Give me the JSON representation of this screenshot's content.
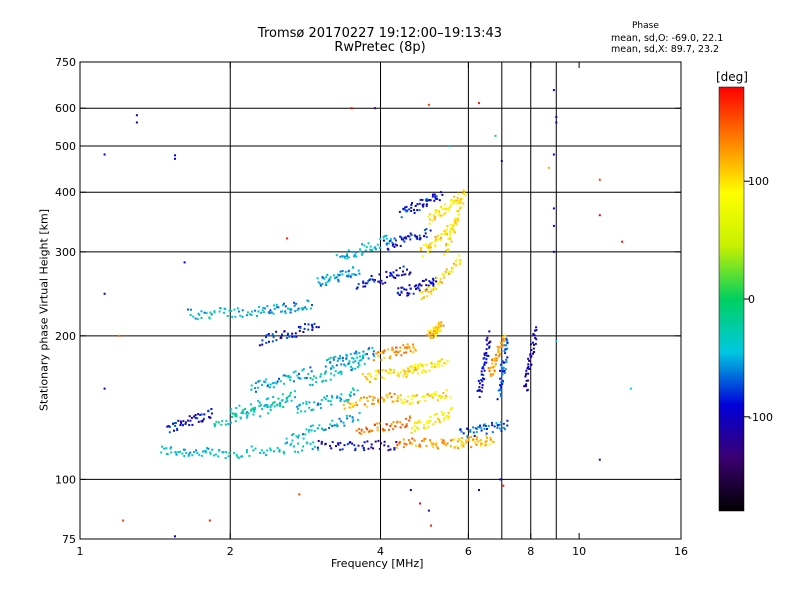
{
  "header": {
    "title": "Tromsø 20170227 19:12:00–19:13:43",
    "subtitle": "RwPretec (8p)",
    "phase_title": "Phase",
    "phase_o": "mean, sd,O: -69.0, 22.1",
    "phase_x": "mean, sd,X:  89.7, 23.2"
  },
  "colorbar": {
    "unit": "[deg]",
    "ticks": [
      {
        "value": 100,
        "label": "100"
      },
      {
        "value": 0,
        "label": "0"
      },
      {
        "value": -100,
        "label": "-100"
      }
    ],
    "range": [
      -180,
      180
    ],
    "colors": [
      "#000000",
      "#3a0070",
      "#0000d8",
      "#00c8e0",
      "#00d060",
      "#c8f000",
      "#ffff00",
      "#ff8000",
      "#ff0000"
    ]
  },
  "chart_data": {
    "type": "scatter",
    "xlabel": "Frequency [MHz]",
    "ylabel": "Stationary phase Virtual Height [km]",
    "x_scale": "log",
    "y_scale": "log",
    "xlim": [
      1,
      16
    ],
    "ylim": [
      75,
      750
    ],
    "x_ticks": [
      1,
      2,
      4,
      6,
      8,
      10,
      16
    ],
    "x_tick_labels": [
      "1",
      "2",
      "4",
      "6",
      "8",
      "10",
      "16"
    ],
    "y_ticks": [
      75,
      100,
      200,
      300,
      400,
      500,
      600,
      750
    ],
    "y_tick_labels": [
      "75",
      "100",
      "200",
      "300",
      "400",
      "500",
      "600",
      "750"
    ],
    "grid_x": [
      2,
      4,
      6,
      7,
      8,
      9
    ],
    "grid_y": [
      100,
      200,
      300,
      400,
      500,
      600
    ],
    "color": "phase [deg]",
    "traces": [
      {
        "f0": 1.45,
        "f1": 1.95,
        "h0": 115,
        "h1": 113,
        "phase": -40
      },
      {
        "f0": 1.95,
        "f1": 3.0,
        "h0": 113,
        "h1": 118,
        "phase": -35
      },
      {
        "f0": 3.0,
        "f1": 4.3,
        "h0": 118,
        "h1": 118,
        "phase": -100
      },
      {
        "f0": 4.3,
        "f1": 5.6,
        "h0": 119,
        "h1": 119,
        "phase": 130
      },
      {
        "f0": 5.6,
        "f1": 6.7,
        "h0": 119,
        "h1": 121,
        "phase": 110
      },
      {
        "f0": 1.5,
        "f1": 1.85,
        "h0": 128,
        "h1": 138,
        "phase": -90
      },
      {
        "f0": 1.85,
        "f1": 2.6,
        "h0": 130,
        "h1": 145,
        "phase": -30
      },
      {
        "f0": 2.6,
        "f1": 3.6,
        "h0": 122,
        "h1": 135,
        "phase": -45
      },
      {
        "f0": 3.6,
        "f1": 4.6,
        "h0": 125,
        "h1": 133,
        "phase": 140
      },
      {
        "f0": 4.6,
        "f1": 5.6,
        "h0": 128,
        "h1": 138,
        "phase": 90
      },
      {
        "f0": 5.8,
        "f1": 7.2,
        "h0": 125,
        "h1": 130,
        "phase": -70
      },
      {
        "f0": 2.0,
        "f1": 2.7,
        "h0": 138,
        "h1": 150,
        "phase": -30
      },
      {
        "f0": 2.7,
        "f1": 3.6,
        "h0": 140,
        "h1": 152,
        "phase": -40
      },
      {
        "f0": 3.4,
        "f1": 4.4,
        "h0": 143,
        "h1": 150,
        "phase": 120
      },
      {
        "f0": 4.4,
        "f1": 5.5,
        "h0": 145,
        "h1": 152,
        "phase": 100
      },
      {
        "f0": 2.2,
        "f1": 2.9,
        "h0": 155,
        "h1": 168,
        "phase": -50
      },
      {
        "f0": 2.9,
        "f1": 3.7,
        "h0": 160,
        "h1": 178,
        "phase": -40
      },
      {
        "f0": 3.7,
        "f1": 4.7,
        "h0": 163,
        "h1": 170,
        "phase": 100
      },
      {
        "f0": 4.5,
        "f1": 5.4,
        "h0": 168,
        "h1": 175,
        "phase": 95
      },
      {
        "f0": 3.1,
        "f1": 3.9,
        "h0": 175,
        "h1": 185,
        "phase": -50
      },
      {
        "f0": 3.9,
        "f1": 4.7,
        "h0": 180,
        "h1": 190,
        "phase": 130
      },
      {
        "f0": 1.65,
        "f1": 2.3,
        "h0": 222,
        "h1": 225,
        "phase": -40
      },
      {
        "f0": 2.3,
        "f1": 2.9,
        "h0": 225,
        "h1": 232,
        "phase": -50
      },
      {
        "f0": 2.3,
        "f1": 3.0,
        "h0": 195,
        "h1": 210,
        "phase": -90
      },
      {
        "f0": 3.0,
        "f1": 3.6,
        "h0": 258,
        "h1": 275,
        "phase": -55
      },
      {
        "f0": 3.6,
        "f1": 4.6,
        "h0": 255,
        "h1": 275,
        "phase": -95
      },
      {
        "f0": 4.3,
        "f1": 5.2,
        "h0": 245,
        "h1": 260,
        "phase": -100
      },
      {
        "f0": 4.8,
        "f1": 5.8,
        "h0": 240,
        "h1": 290,
        "phase": 100
      },
      {
        "f0": 3.3,
        "f1": 4.2,
        "h0": 290,
        "h1": 320,
        "phase": -40
      },
      {
        "f0": 4.1,
        "f1": 5.0,
        "h0": 310,
        "h1": 330,
        "phase": -90
      },
      {
        "f0": 4.8,
        "f1": 5.7,
        "h0": 300,
        "h1": 345,
        "phase": 100
      },
      {
        "f0": 4.4,
        "f1": 5.3,
        "h0": 360,
        "h1": 395,
        "phase": -85
      },
      {
        "f0": 5.0,
        "f1": 5.8,
        "h0": 350,
        "h1": 390,
        "phase": 95
      },
      {
        "f0": 6.3,
        "f1": 6.6,
        "h0": 150,
        "h1": 200,
        "phase": -100
      },
      {
        "f0": 6.9,
        "f1": 7.2,
        "h0": 150,
        "h1": 195,
        "phase": -75
      },
      {
        "f0": 7.8,
        "f1": 8.2,
        "h0": 155,
        "h1": 205,
        "phase": -110
      },
      {
        "f0": 6.6,
        "f1": 7.1,
        "h0": 165,
        "h1": 200,
        "phase": 120
      },
      {
        "f0": 5.0,
        "f1": 5.3,
        "h0": 200,
        "h1": 210,
        "phase": 110
      },
      {
        "f0": 5.4,
        "f1": 5.9,
        "h0": 300,
        "h1": 400,
        "phase": 95
      }
    ],
    "points": [
      {
        "f": 1.12,
        "h": 480,
        "phase": -90
      },
      {
        "f": 1.3,
        "h": 580,
        "phase": -100
      },
      {
        "f": 1.3,
        "h": 560,
        "phase": -110
      },
      {
        "f": 1.55,
        "h": 478,
        "phase": -90
      },
      {
        "f": 1.55,
        "h": 470,
        "phase": -95
      },
      {
        "f": 1.12,
        "h": 245,
        "phase": -110
      },
      {
        "f": 1.62,
        "h": 285,
        "phase": -90
      },
      {
        "f": 1.2,
        "h": 200,
        "phase": 140
      },
      {
        "f": 1.12,
        "h": 155,
        "phase": -100
      },
      {
        "f": 1.22,
        "h": 82,
        "phase": 160
      },
      {
        "f": 1.55,
        "h": 76,
        "phase": -90
      },
      {
        "f": 1.82,
        "h": 82,
        "phase": 170
      },
      {
        "f": 2.75,
        "h": 93,
        "phase": 160
      },
      {
        "f": 2.6,
        "h": 320,
        "phase": 170
      },
      {
        "f": 3.9,
        "h": 600,
        "phase": -130
      },
      {
        "f": 3.5,
        "h": 600,
        "phase": 200
      },
      {
        "f": 5.0,
        "h": 610,
        "phase": 160
      },
      {
        "f": 6.3,
        "h": 615,
        "phase": 170
      },
      {
        "f": 5.5,
        "h": 500,
        "phase": -40
      },
      {
        "f": 6.8,
        "h": 525,
        "phase": -40
      },
      {
        "f": 7.0,
        "h": 465,
        "phase": -100
      },
      {
        "f": 8.9,
        "h": 655,
        "phase": -110
      },
      {
        "f": 9.0,
        "h": 575,
        "phase": -110
      },
      {
        "f": 9.0,
        "h": 560,
        "phase": -90
      },
      {
        "f": 8.9,
        "h": 480,
        "phase": -100
      },
      {
        "f": 8.9,
        "h": 370,
        "phase": -100
      },
      {
        "f": 8.9,
        "h": 340,
        "phase": -90
      },
      {
        "f": 8.9,
        "h": 300,
        "phase": -110
      },
      {
        "f": 8.7,
        "h": 450,
        "phase": 120
      },
      {
        "f": 9.0,
        "h": 195,
        "phase": -40
      },
      {
        "f": 11.0,
        "h": 425,
        "phase": 160
      },
      {
        "f": 11.0,
        "h": 358,
        "phase": 190
      },
      {
        "f": 12.2,
        "h": 315,
        "phase": 180
      },
      {
        "f": 12.7,
        "h": 155,
        "phase": -40
      },
      {
        "f": 11.0,
        "h": 110,
        "phase": -110
      },
      {
        "f": 4.8,
        "h": 89,
        "phase": 180
      },
      {
        "f": 5.0,
        "h": 86,
        "phase": -120
      },
      {
        "f": 5.05,
        "h": 80,
        "phase": 170
      },
      {
        "f": 6.3,
        "h": 95,
        "phase": -110
      },
      {
        "f": 6.95,
        "h": 100,
        "phase": -100
      },
      {
        "f": 7.05,
        "h": 97,
        "phase": 170
      },
      {
        "f": 4.6,
        "h": 95,
        "phase": -100
      }
    ]
  }
}
